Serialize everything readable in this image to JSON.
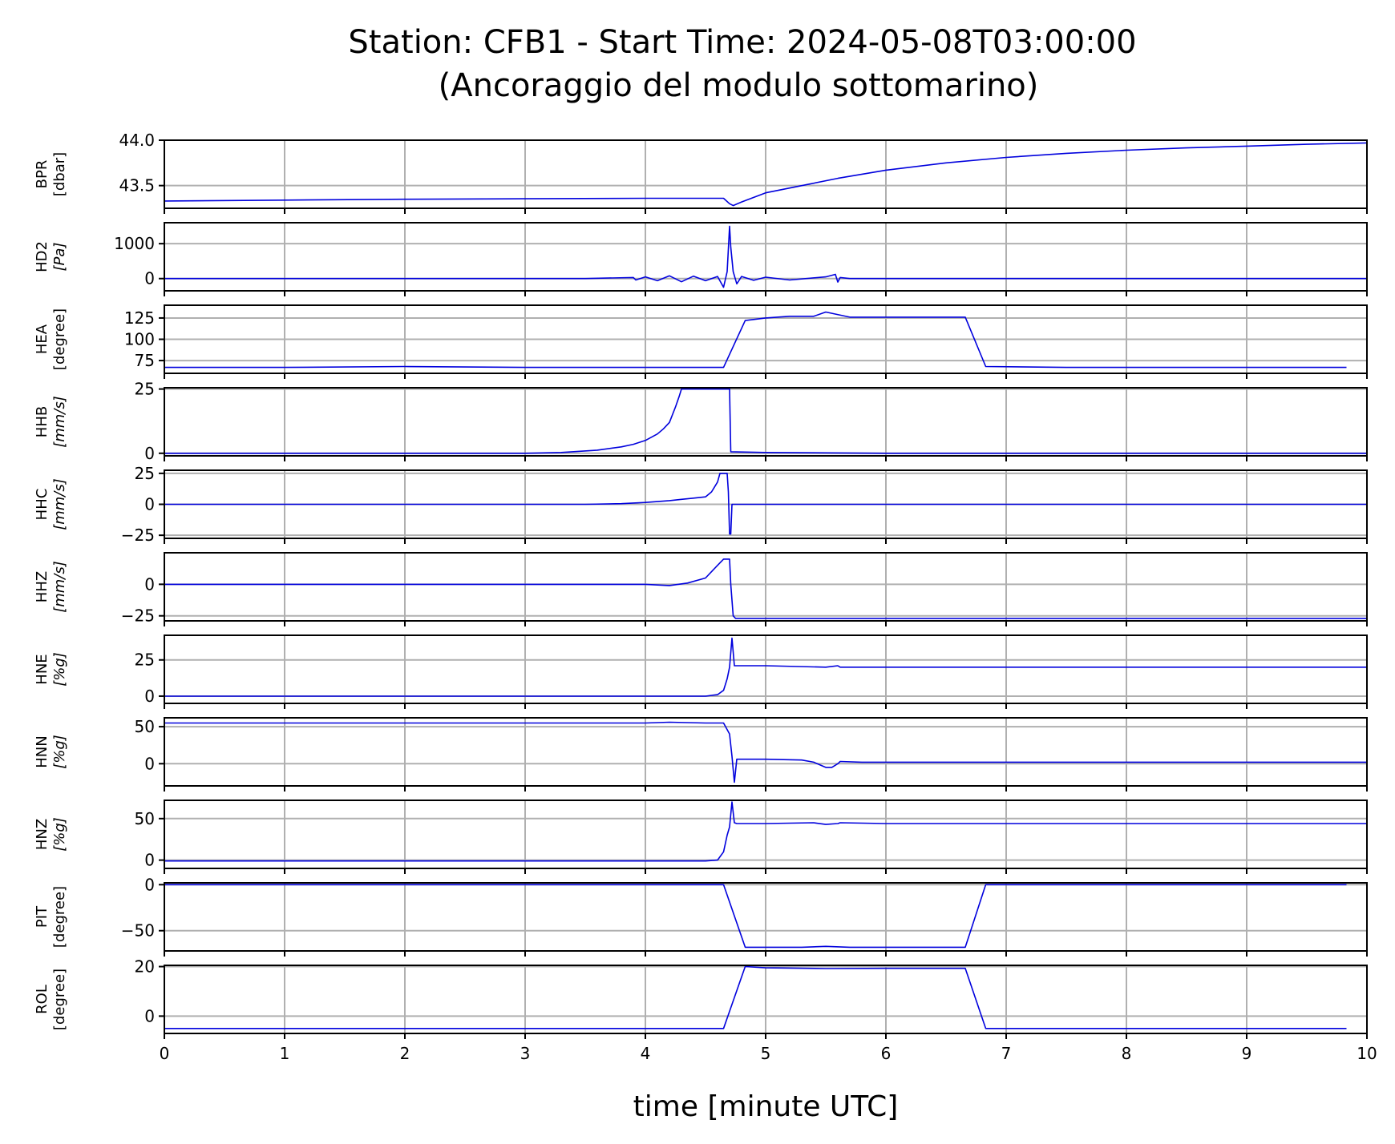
{
  "chart_data": {
    "type": "line",
    "title": "Station: CFB1 - Start Time: 2024-05-08T03:00:00",
    "subtitle": "(Ancoraggio del modulo sottomarino)",
    "xlabel": "time [minute UTC]",
    "xlim": [
      0,
      10
    ],
    "xticks": [
      0,
      1,
      2,
      3,
      4,
      5,
      6,
      7,
      8,
      9,
      10
    ],
    "grid": true,
    "line_color": "#0000dd",
    "grid_color": "#b0b0b0",
    "panels": [
      {
        "name": "BPR",
        "unit": "[dbar]",
        "unit_italic": false,
        "ylim": [
          43.25,
          44.0
        ],
        "yticks": [
          43.5,
          44.0
        ],
        "ytick_labels": [
          "43.5",
          "44.0"
        ],
        "x": [
          0,
          1,
          2,
          3,
          4,
          4.5,
          4.65,
          4.7,
          4.73,
          4.8,
          5.0,
          5.3,
          5.6,
          6.0,
          6.5,
          7.0,
          7.5,
          8.0,
          8.5,
          9.0,
          9.5,
          10.0
        ],
        "y": [
          43.33,
          43.34,
          43.35,
          43.355,
          43.36,
          43.36,
          43.36,
          43.3,
          43.28,
          43.32,
          43.42,
          43.5,
          43.58,
          43.67,
          43.75,
          43.81,
          43.855,
          43.89,
          43.915,
          43.935,
          43.955,
          43.97
        ]
      },
      {
        "name": "HD2",
        "unit": "[Pa]",
        "unit_italic": true,
        "ylim": [
          -350,
          1600
        ],
        "yticks": [
          0,
          1000
        ],
        "ytick_labels": [
          "0",
          "1000"
        ],
        "x": [
          0,
          3.5,
          3.9,
          3.92,
          4.0,
          4.1,
          4.2,
          4.3,
          4.4,
          4.5,
          4.6,
          4.65,
          4.68,
          4.7,
          4.71,
          4.73,
          4.76,
          4.8,
          4.9,
          5.0,
          5.2,
          5.5,
          5.58,
          5.6,
          5.62,
          5.7,
          6.5,
          8.0,
          10.0
        ],
        "y": [
          0,
          0,
          30,
          -40,
          50,
          -60,
          80,
          -90,
          70,
          -60,
          60,
          -250,
          200,
          1500,
          900,
          200,
          -150,
          60,
          -50,
          40,
          -40,
          50,
          120,
          -100,
          30,
          0,
          0,
          0,
          0
        ]
      },
      {
        "name": "HEA",
        "unit": "[degree]",
        "unit_italic": false,
        "ylim": [
          60,
          140
        ],
        "yticks": [
          75,
          100,
          125
        ],
        "ytick_labels": [
          "75",
          "100",
          "125"
        ],
        "x": [
          0,
          1,
          2,
          3,
          4,
          4.65,
          4.83,
          5.0,
          5.2,
          5.4,
          5.5,
          5.7,
          6.0,
          6.5,
          6.66,
          6.83,
          7.5,
          8.5,
          9.83
        ],
        "y": [
          67,
          67,
          68,
          67,
          67,
          67,
          122,
          125,
          127,
          127,
          132,
          126,
          126,
          126,
          126,
          68,
          67,
          67,
          67
        ]
      },
      {
        "name": "HHB",
        "unit": "[mm/s]",
        "unit_italic": true,
        "ylim": [
          -1,
          25.5
        ],
        "yticks": [
          0,
          25
        ],
        "ytick_labels": [
          "0",
          "25"
        ],
        "x": [
          0,
          2.5,
          3.0,
          3.3,
          3.6,
          3.8,
          3.9,
          4.0,
          4.1,
          4.15,
          4.2,
          4.25,
          4.28,
          4.3,
          4.35,
          4.5,
          4.65,
          4.7,
          4.71,
          5.0,
          6.0,
          8.0,
          10.0
        ],
        "y": [
          0,
          0,
          0,
          0.3,
          1.2,
          2.5,
          3.5,
          5.0,
          7.5,
          9.5,
          12.0,
          18.0,
          22.0,
          25.0,
          25.0,
          25.0,
          25.0,
          25.0,
          0.6,
          0.3,
          0,
          0,
          0
        ]
      },
      {
        "name": "HHC",
        "unit": "[mm/s]",
        "unit_italic": true,
        "ylim": [
          -27.5,
          27.5
        ],
        "yticks": [
          -25,
          0,
          25
        ],
        "ytick_labels": [
          "−25",
          "0",
          "25"
        ],
        "x": [
          0,
          3.5,
          3.8,
          4.0,
          4.2,
          4.3,
          4.4,
          4.5,
          4.55,
          4.6,
          4.62,
          4.68,
          4.69,
          4.7,
          4.71,
          4.72,
          5.0,
          7.0,
          10.0
        ],
        "y": [
          0,
          0,
          0.5,
          1.5,
          3,
          4,
          5,
          6,
          10,
          18,
          25,
          25,
          10,
          -24,
          -24,
          0,
          0,
          0,
          0
        ]
      },
      {
        "name": "HHZ",
        "unit": "[mm/s]",
        "unit_italic": true,
        "ylim": [
          -29,
          25
        ],
        "yticks": [
          -25,
          0
        ],
        "ytick_labels": [
          "−25",
          "0"
        ],
        "x": [
          0,
          3.5,
          3.8,
          4.0,
          4.2,
          4.35,
          4.5,
          4.6,
          4.65,
          4.7,
          4.71,
          4.73,
          4.75,
          5.0,
          7.0,
          10.0
        ],
        "y": [
          0,
          0,
          0,
          0,
          -1,
          1,
          5,
          15,
          20,
          20,
          0,
          -25,
          -27,
          -27,
          -27,
          -27
        ]
      },
      {
        "name": "HNE",
        "unit": "[%g]",
        "unit_italic": true,
        "ylim": [
          -5,
          42
        ],
        "yticks": [
          0,
          25
        ],
        "ytick_labels": [
          "0",
          "25"
        ],
        "x": [
          0,
          3.5,
          3.9,
          4.0,
          4.2,
          4.3,
          4.5,
          4.6,
          4.65,
          4.68,
          4.7,
          4.72,
          4.74,
          5.0,
          5.5,
          5.6,
          5.62,
          6.0,
          7.0,
          8.0,
          10.0
        ],
        "y": [
          0,
          0,
          0,
          0,
          0,
          0,
          0,
          1,
          4,
          12,
          20,
          40,
          21,
          21,
          20,
          21,
          20,
          20,
          20,
          20,
          20
        ]
      },
      {
        "name": "HNN",
        "unit": "[%g]",
        "unit_italic": true,
        "ylim": [
          -30,
          62
        ],
        "yticks": [
          0,
          50
        ],
        "ytick_labels": [
          "0",
          "50"
        ],
        "x": [
          0,
          1,
          2,
          3,
          3.8,
          4.0,
          4.2,
          4.5,
          4.65,
          4.7,
          4.72,
          4.74,
          4.76,
          5.0,
          5.3,
          5.4,
          5.5,
          5.55,
          5.6,
          5.62,
          5.8,
          7.0,
          8.0,
          10.0
        ],
        "y": [
          55,
          55,
          55,
          55,
          55,
          55,
          56,
          55,
          55,
          40,
          10,
          -25,
          6,
          6,
          5,
          2,
          -5,
          -5,
          0,
          3,
          2,
          2,
          2,
          2
        ]
      },
      {
        "name": "HNZ",
        "unit": "[%g]",
        "unit_italic": true,
        "ylim": [
          -10,
          72
        ],
        "yticks": [
          0,
          50
        ],
        "ytick_labels": [
          "0",
          "50"
        ],
        "x": [
          0,
          3.5,
          4.0,
          4.2,
          4.5,
          4.6,
          4.65,
          4.68,
          4.7,
          4.72,
          4.74,
          4.76,
          5.0,
          5.4,
          5.5,
          5.6,
          5.62,
          6.0,
          7.0,
          8.0,
          10.0
        ],
        "y": [
          -1,
          -1,
          -1,
          -1,
          -1,
          0,
          10,
          30,
          40,
          70,
          45,
          44,
          44,
          45,
          43,
          44,
          45,
          44,
          44,
          44,
          44
        ]
      },
      {
        "name": "PIT",
        "unit": "[degree]",
        "unit_italic": false,
        "ylim": [
          -72,
          2
        ],
        "yticks": [
          -50,
          0
        ],
        "ytick_labels": [
          "−50",
          "0"
        ],
        "x": [
          0,
          1,
          2,
          3,
          4,
          4.65,
          4.83,
          5.0,
          5.3,
          5.5,
          5.7,
          6.0,
          6.5,
          6.66,
          6.83,
          7.5,
          8.5,
          9.83
        ],
        "y": [
          0,
          0,
          0,
          0,
          0,
          0,
          -68,
          -68,
          -68,
          -67,
          -68,
          -68,
          -68,
          -68,
          0,
          0,
          0,
          0
        ]
      },
      {
        "name": "ROL",
        "unit": "[degree]",
        "unit_italic": false,
        "ylim": [
          -7,
          20.5
        ],
        "yticks": [
          0,
          20
        ],
        "ytick_labels": [
          "0",
          "20"
        ],
        "x": [
          0,
          1,
          2,
          3,
          4,
          4.65,
          4.83,
          5.0,
          5.5,
          6.0,
          6.5,
          6.66,
          6.83,
          7.5,
          8.5,
          9.83
        ],
        "y": [
          -5,
          -5,
          -5,
          -5,
          -5,
          -5,
          20,
          19.5,
          19.2,
          19.3,
          19.3,
          19.3,
          -5,
          -5,
          -5,
          -5
        ]
      }
    ]
  }
}
